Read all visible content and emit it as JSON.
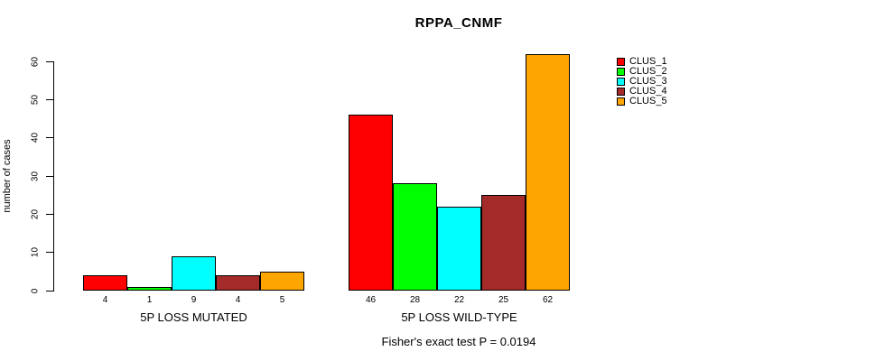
{
  "chart_data": {
    "type": "bar",
    "title": "RPPA_CNMF",
    "ylabel": "number of cases",
    "ylim": [
      0,
      62
    ],
    "yticks": [
      0,
      10,
      20,
      30,
      40,
      50,
      60
    ],
    "categories": [
      "5P LOSS MUTATED",
      "5P LOSS WILD-TYPE"
    ],
    "series": [
      {
        "name": "CLUS_1",
        "color": "#FF0000",
        "values": [
          4,
          46
        ]
      },
      {
        "name": "CLUS_2",
        "color": "#00FF00",
        "values": [
          1,
          28
        ]
      },
      {
        "name": "CLUS_3",
        "color": "#00FFFF",
        "values": [
          9,
          22
        ]
      },
      {
        "name": "CLUS_4",
        "color": "#A52A2A",
        "values": [
          4,
          25
        ]
      },
      {
        "name": "CLUS_5",
        "color": "#FFA500",
        "values": [
          5,
          62
        ]
      }
    ],
    "bar_value_labels": [
      [
        4,
        1,
        9,
        4,
        5
      ],
      [
        46,
        28,
        22,
        25,
        62
      ]
    ],
    "annotation": "Fisher's exact test P = 0.0194",
    "legend_position": "top-right",
    "grid": false,
    "background": "#FFFFFF",
    "axis_color": "#000000"
  }
}
